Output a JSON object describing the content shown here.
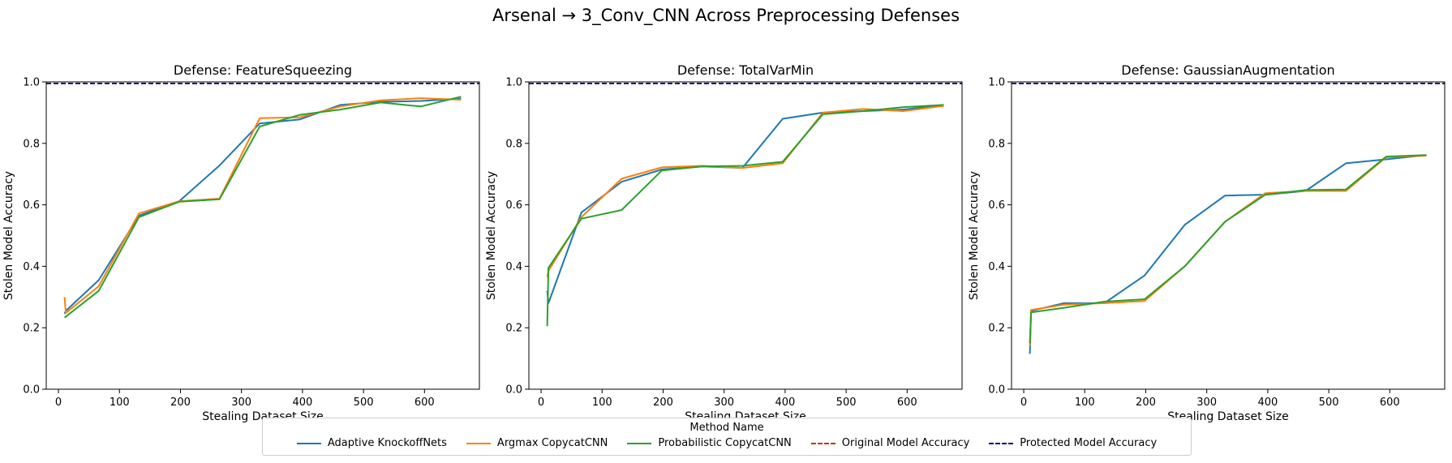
{
  "suptitle": "Arsenal → 3_Conv_CNN Across Preprocessing Defenses",
  "legend": {
    "title": "Method Name",
    "items": [
      {
        "label": "Adaptive KnockoffNets",
        "color": "#1f77b4",
        "style": "solid"
      },
      {
        "label": "Argmax CopycatCNN",
        "color": "#ff7f0e",
        "style": "solid"
      },
      {
        "label": "Probabilistic CopycatCNN",
        "color": "#2ca02c",
        "style": "solid"
      },
      {
        "label": "Original Model Accuracy",
        "color": "#d62728",
        "style": "dashed"
      },
      {
        "label": "Protected Model Accuracy",
        "color": "#000080",
        "style": "dashed"
      }
    ]
  },
  "chart_data": [
    {
      "type": "line",
      "title": "Defense: FeatureSqueezing",
      "xlabel": "Stealing Dataset Size",
      "ylabel": "Stolen Model Accuracy",
      "xlim": [
        -20,
        690
      ],
      "ylim": [
        0,
        1.0
      ],
      "xticks": [
        0,
        100,
        200,
        300,
        400,
        500,
        600
      ],
      "yticks": [
        0.0,
        0.2,
        0.4,
        0.6,
        0.8,
        1.0
      ],
      "hlines": [
        {
          "name": "Original Model Accuracy",
          "y": 0.995
        },
        {
          "name": "Protected Model Accuracy",
          "y": 0.995
        }
      ],
      "series": [
        {
          "name": "Adaptive KnockoffNets",
          "x": [
            10,
            12,
            66,
            132,
            198,
            264,
            330,
            396,
            462,
            528,
            594,
            660
          ],
          "y": [
            0.245,
            0.255,
            0.355,
            0.565,
            0.612,
            0.728,
            0.865,
            0.878,
            0.925,
            0.935,
            0.938,
            0.945
          ]
        },
        {
          "name": "Argmax CopycatCNN",
          "x": [
            10,
            12,
            66,
            132,
            198,
            264,
            330,
            396,
            462,
            528,
            594,
            660
          ],
          "y": [
            0.3,
            0.248,
            0.335,
            0.572,
            0.612,
            0.62,
            0.882,
            0.885,
            0.92,
            0.94,
            0.947,
            0.942
          ]
        },
        {
          "name": "Probabilistic CopycatCNN",
          "x": [
            10,
            66,
            132,
            198,
            264,
            330,
            396,
            462,
            528,
            594,
            660
          ],
          "y": [
            0.233,
            0.32,
            0.56,
            0.61,
            0.618,
            0.855,
            0.893,
            0.91,
            0.933,
            0.92,
            0.952
          ]
        }
      ]
    },
    {
      "type": "line",
      "title": "Defense: TotalVarMin",
      "xlabel": "Stealing Dataset Size",
      "ylabel": "Stolen Model Accuracy",
      "xlim": [
        -20,
        690
      ],
      "ylim": [
        0,
        1.0
      ],
      "xticks": [
        0,
        100,
        200,
        300,
        400,
        500,
        600
      ],
      "yticks": [
        0.0,
        0.2,
        0.4,
        0.6,
        0.8,
        1.0
      ],
      "hlines": [
        {
          "name": "Original Model Accuracy",
          "y": 0.995
        },
        {
          "name": "Protected Model Accuracy",
          "y": 0.995
        }
      ],
      "series": [
        {
          "name": "Adaptive KnockoffNets",
          "x": [
            10,
            12,
            66,
            132,
            198,
            264,
            330,
            396,
            462,
            528,
            594,
            660
          ],
          "y": [
            0.32,
            0.28,
            0.575,
            0.675,
            0.715,
            0.725,
            0.72,
            0.88,
            0.9,
            0.905,
            0.91,
            0.925
          ]
        },
        {
          "name": "Argmax CopycatCNN",
          "x": [
            10,
            12,
            66,
            132,
            198,
            264,
            330,
            396,
            462,
            528,
            594,
            660
          ],
          "y": [
            0.365,
            0.385,
            0.56,
            0.685,
            0.722,
            0.727,
            0.72,
            0.735,
            0.9,
            0.912,
            0.905,
            0.922
          ]
        },
        {
          "name": "Probabilistic CopycatCNN",
          "x": [
            10,
            12,
            66,
            132,
            198,
            264,
            330,
            396,
            462,
            528,
            594,
            660
          ],
          "y": [
            0.205,
            0.395,
            0.555,
            0.583,
            0.712,
            0.725,
            0.727,
            0.74,
            0.895,
            0.905,
            0.918,
            0.925
          ]
        }
      ]
    },
    {
      "type": "line",
      "title": "Defense: GaussianAugmentation",
      "xlabel": "Stealing Dataset Size",
      "ylabel": "Stolen Model Accuracy",
      "xlim": [
        -20,
        690
      ],
      "ylim": [
        0,
        1.0
      ],
      "xticks": [
        0,
        100,
        200,
        300,
        400,
        500,
        600
      ],
      "yticks": [
        0.0,
        0.2,
        0.4,
        0.6,
        0.8,
        1.0
      ],
      "hlines": [
        {
          "name": "Original Model Accuracy",
          "y": 0.995
        },
        {
          "name": "Protected Model Accuracy",
          "y": 0.995
        }
      ],
      "series": [
        {
          "name": "Adaptive KnockoffNets",
          "x": [
            10,
            12,
            66,
            132,
            198,
            264,
            330,
            396,
            462,
            528,
            594,
            660
          ],
          "y": [
            0.115,
            0.255,
            0.28,
            0.28,
            0.37,
            0.535,
            0.63,
            0.633,
            0.645,
            0.735,
            0.748,
            0.762
          ]
        },
        {
          "name": "Argmax CopycatCNN",
          "x": [
            10,
            12,
            66,
            132,
            198,
            264,
            330,
            396,
            462,
            528,
            594,
            660
          ],
          "y": [
            0.14,
            0.258,
            0.275,
            0.28,
            0.287,
            0.4,
            0.545,
            0.638,
            0.645,
            0.645,
            0.755,
            0.76
          ]
        },
        {
          "name": "Probabilistic CopycatCNN",
          "x": [
            10,
            12,
            66,
            132,
            198,
            264,
            330,
            396,
            462,
            528,
            594,
            660
          ],
          "y": [
            0.15,
            0.25,
            0.265,
            0.285,
            0.293,
            0.4,
            0.545,
            0.633,
            0.648,
            0.65,
            0.757,
            0.762
          ]
        }
      ]
    }
  ]
}
